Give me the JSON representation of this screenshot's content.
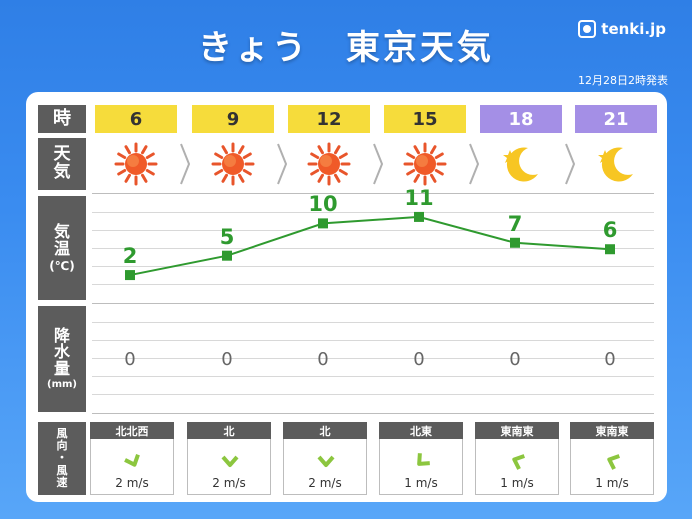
{
  "header": {
    "title": "きょう　東京天気",
    "logo_text": "tenki.jp",
    "issued": "12月28日2時発表"
  },
  "row_labels": {
    "time": "時",
    "weather": [
      "天",
      "気"
    ],
    "temperature": [
      "気",
      "温",
      "(℃)"
    ],
    "precipitation": [
      "降",
      "水",
      "量",
      "(mm)"
    ],
    "wind": [
      "風",
      "向",
      "・",
      "風",
      "速"
    ]
  },
  "forecast": [
    {
      "hour": "6",
      "period": "day",
      "icon": "sun-icon",
      "temp": "2",
      "precip": "0",
      "wind_dir": "北北西",
      "wind_speed": "2 m/s"
    },
    {
      "hour": "9",
      "period": "day",
      "icon": "sun-icon",
      "temp": "5",
      "precip": "0",
      "wind_dir": "北",
      "wind_speed": "2 m/s"
    },
    {
      "hour": "12",
      "period": "day",
      "icon": "sun-icon",
      "temp": "10",
      "precip": "0",
      "wind_dir": "北",
      "wind_speed": "2 m/s"
    },
    {
      "hour": "15",
      "period": "day",
      "icon": "sun-icon",
      "temp": "11",
      "precip": "0",
      "wind_dir": "北東",
      "wind_speed": "1 m/s"
    },
    {
      "hour": "18",
      "period": "night",
      "icon": "moon-icon",
      "temp": "7",
      "precip": "0",
      "wind_dir": "東南東",
      "wind_speed": "1 m/s"
    },
    {
      "hour": "21",
      "period": "night",
      "icon": "moon-icon",
      "temp": "6",
      "precip": "0",
      "wind_dir": "東南東",
      "wind_speed": "1 m/s"
    }
  ],
  "colors": {
    "background": "#3a8cf0",
    "day_header": "#f6dc3b",
    "night_header": "#a48fe6",
    "temp_line": "#2f9a2f",
    "wind_arrow": "#8cc63f",
    "label_bg": "#5c5c5c"
  }
}
